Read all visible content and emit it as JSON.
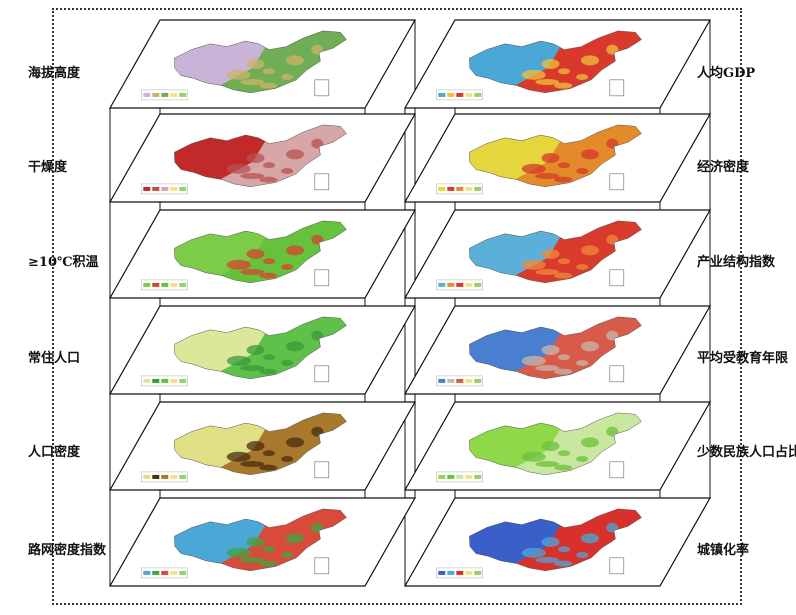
{
  "left_labels": [
    "海拔高度",
    "干燥度",
    "≥10℃积温",
    "常住人口",
    "人口密度",
    "路网密度指数"
  ],
  "right_labels": [
    "人均GDP",
    "经济密度",
    "产业结构指数",
    "平均受教育年限",
    "少数民族人口占比",
    "城镇化率"
  ],
  "palette": {
    "left": [
      {
        "west": "#c9b4d8",
        "east": "#6fae54",
        "accent": "#cfb26a"
      },
      {
        "west": "#c22a2a",
        "east": "#d7a6a6",
        "accent": "#b85050"
      },
      {
        "west": "#7ccc4a",
        "east": "#66c23c",
        "accent": "#d8432c"
      },
      {
        "west": "#dde79a",
        "east": "#5fc04a",
        "accent": "#3a9a3a"
      },
      {
        "west": "#e0df86",
        "east": "#a8782c",
        "accent": "#4a2c10"
      },
      {
        "west": "#4aa7d6",
        "east": "#d84a3a",
        "accent": "#3fa63f"
      }
    ],
    "right": [
      {
        "west": "#4aa7d6",
        "east": "#d8392c",
        "accent": "#f0c13a"
      },
      {
        "west": "#e4d63c",
        "east": "#e38a2a",
        "accent": "#d43a2a"
      },
      {
        "west": "#5ab0d8",
        "east": "#d83a2c",
        "accent": "#f08a3a"
      },
      {
        "west": "#4a7ed0",
        "east": "#d85a4a",
        "accent": "#c8b8a8"
      },
      {
        "west": "#8ed84a",
        "east": "#c8e8a0",
        "accent": "#6cc03a"
      },
      {
        "west": "#3a5fc8",
        "east": "#d8302a",
        "accent": "#4aa8d8"
      }
    ]
  }
}
